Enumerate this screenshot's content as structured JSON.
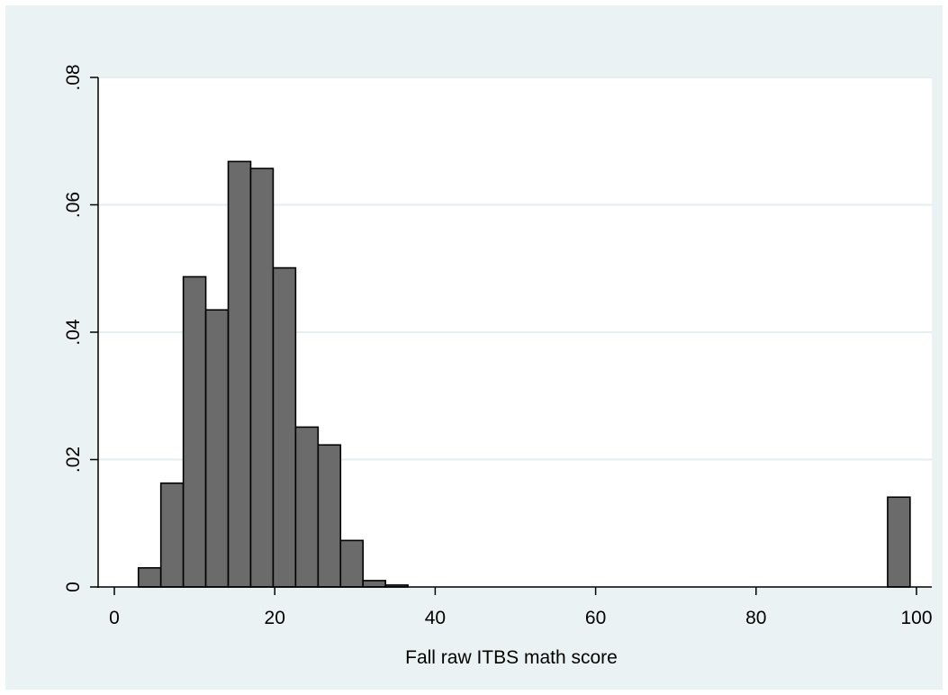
{
  "chart_data": {
    "type": "bar",
    "title": "",
    "xlabel": "Fall raw ITBS math score",
    "ylabel": "",
    "xlim": [
      0,
      100
    ],
    "ylim": [
      0,
      0.08
    ],
    "xticks": [
      0,
      20,
      40,
      60,
      80,
      100
    ],
    "xtick_labels": [
      "0",
      "20",
      "40",
      "60",
      "80",
      "100"
    ],
    "yticks": [
      0,
      0.02,
      0.04,
      0.06,
      0.08
    ],
    "ytick_labels": [
      "0",
      ".02",
      ".04",
      ".06",
      ".08"
    ],
    "grid": true,
    "bar_color": "#6b6b6b",
    "bar_edge_color": "#000000",
    "plot_background": "#ffffff",
    "outer_background": "#eaf2f3",
    "gridline_color": "#e6eef0",
    "bins": [
      {
        "start": 3.0,
        "end": 5.8,
        "value": 0.003
      },
      {
        "start": 5.8,
        "end": 8.6,
        "value": 0.0163
      },
      {
        "start": 8.6,
        "end": 11.4,
        "value": 0.0487
      },
      {
        "start": 11.4,
        "end": 14.2,
        "value": 0.0435
      },
      {
        "start": 14.2,
        "end": 17.0,
        "value": 0.0668
      },
      {
        "start": 17.0,
        "end": 19.8,
        "value": 0.0657
      },
      {
        "start": 19.8,
        "end": 22.6,
        "value": 0.0501
      },
      {
        "start": 22.6,
        "end": 25.4,
        "value": 0.0251
      },
      {
        "start": 25.4,
        "end": 28.2,
        "value": 0.0223
      },
      {
        "start": 28.2,
        "end": 31.0,
        "value": 0.0073
      },
      {
        "start": 31.0,
        "end": 33.8,
        "value": 0.001
      },
      {
        "start": 33.8,
        "end": 36.6,
        "value": 0.0003
      },
      {
        "start": 96.4,
        "end": 99.2,
        "value": 0.0141
      }
    ]
  }
}
